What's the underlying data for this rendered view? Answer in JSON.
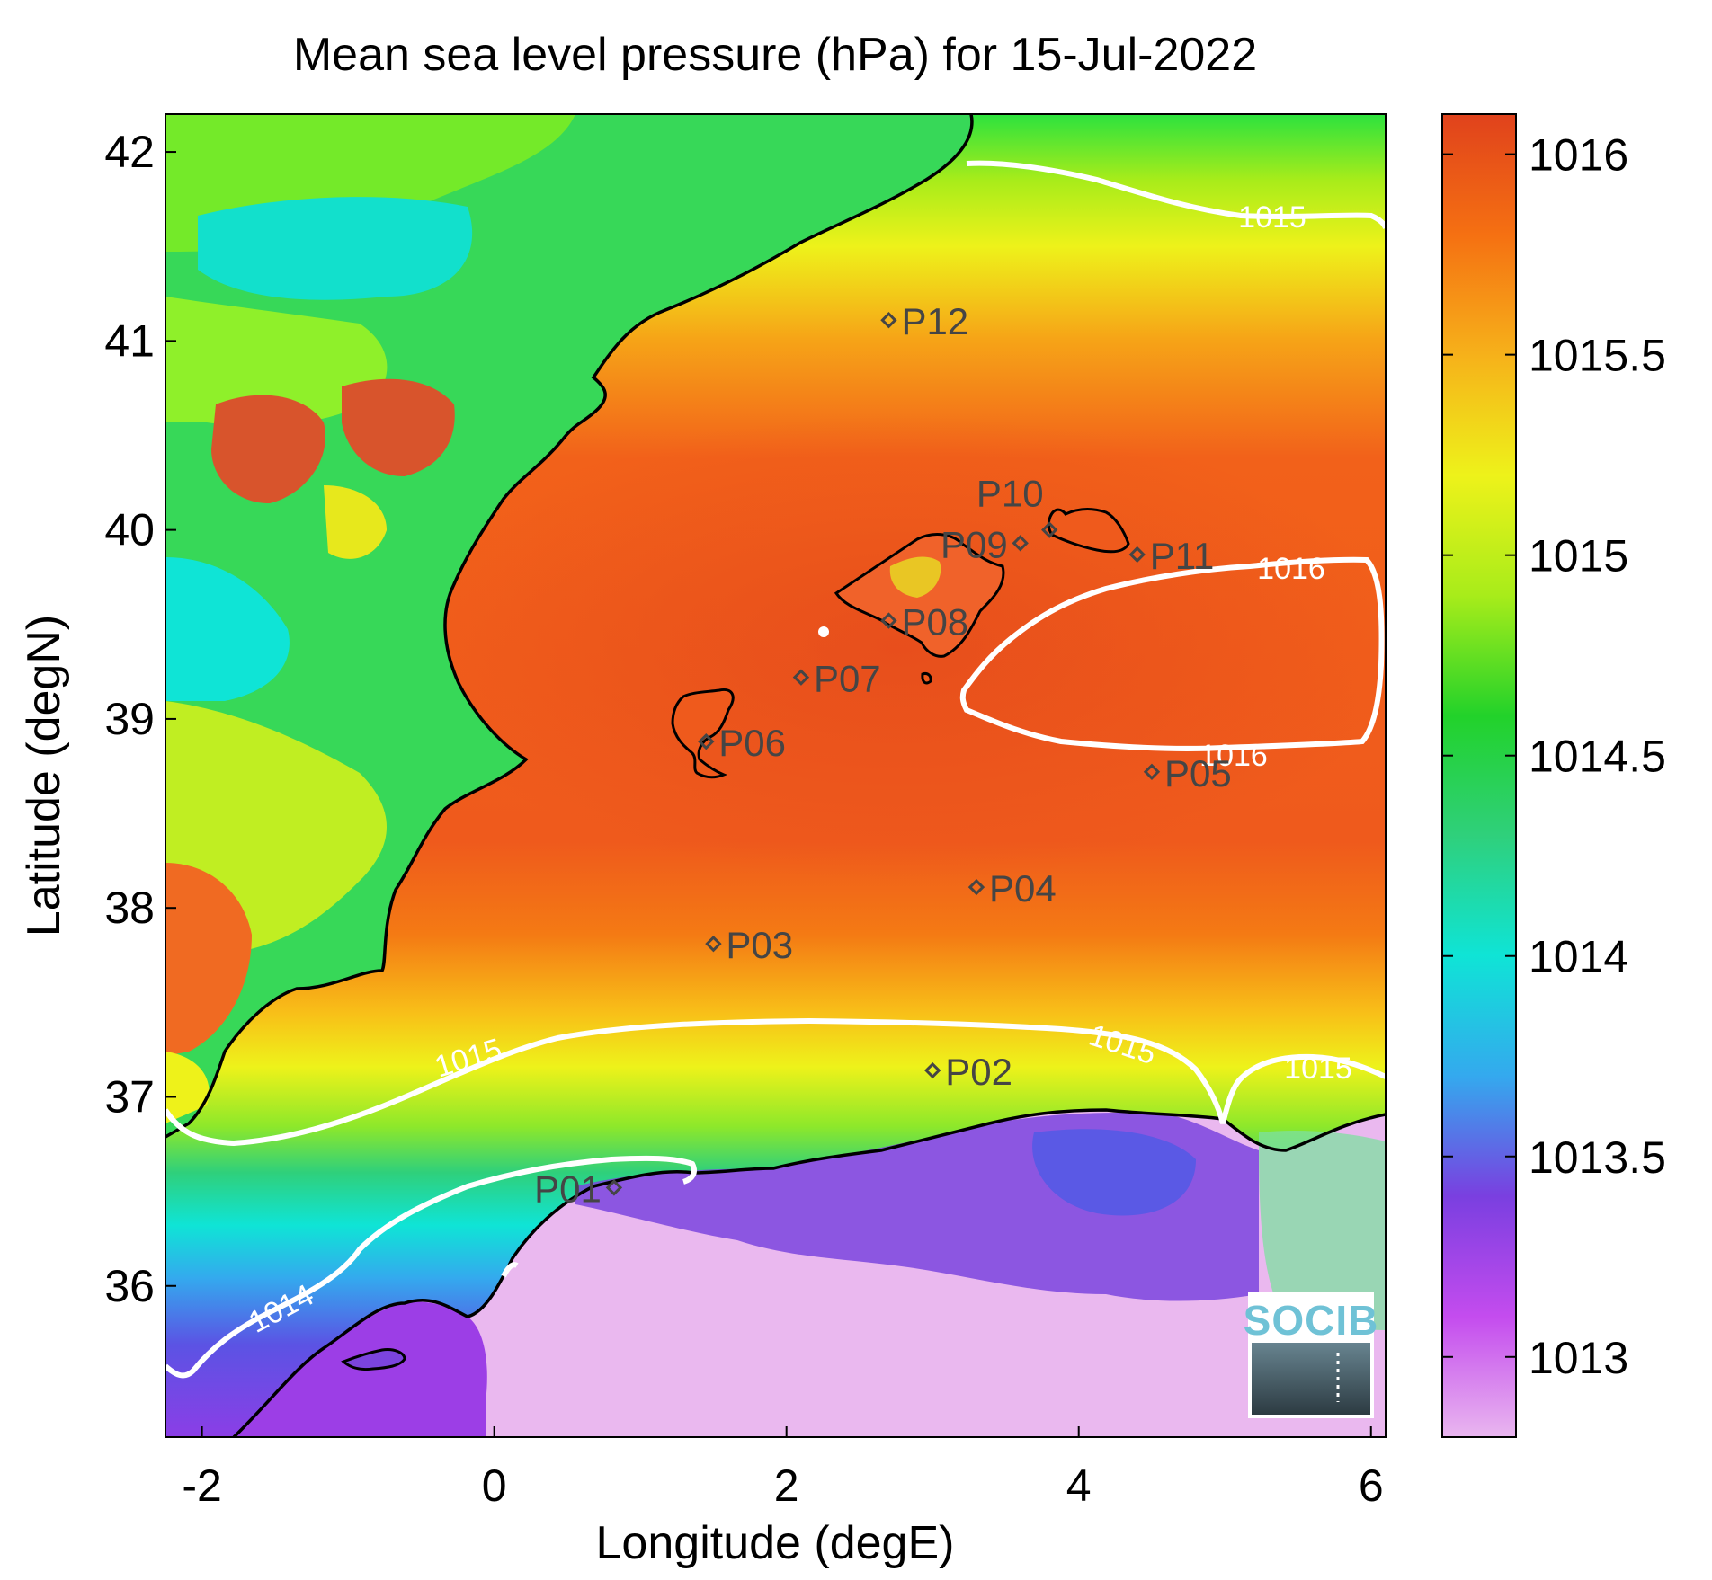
{
  "title": "Mean sea level pressure (hPa) for 15-Jul-2022",
  "xlabel": "Longitude (degE)",
  "ylabel": "Latitude (degN)",
  "map": {
    "lon_range": [
      -2.25,
      6.1
    ],
    "lat_range": [
      35.2,
      42.2
    ],
    "lon_ticks": [
      "-2",
      "0",
      "2",
      "4",
      "6"
    ],
    "lat_ticks": [
      "36",
      "37",
      "38",
      "39",
      "40",
      "41",
      "42"
    ]
  },
  "colorbar": {
    "range": [
      1012.8,
      1016.1
    ],
    "ticks": [
      "1013",
      "1013.5",
      "1014",
      "1014.5",
      "1015",
      "1015.5",
      "1016"
    ],
    "colors": [
      "#e9b6ef",
      "#c44cee",
      "#7a3fe0",
      "#34a9ee",
      "#0fe4d6",
      "#2fd07b",
      "#22d22a",
      "#a8ec1a",
      "#eef21a",
      "#f6b11a",
      "#f57012",
      "#e0421c"
    ]
  },
  "contours": {
    "levels": [
      "1014",
      "1015",
      "1016"
    ],
    "labels": [
      "1015",
      "1015",
      "1015",
      "1015",
      "1016",
      "1016",
      "1014"
    ],
    "color": "#ffffff"
  },
  "stations": [
    {
      "id": "P01",
      "lon": 0.82,
      "lat": 36.52
    },
    {
      "id": "P02",
      "lon": 3.0,
      "lat": 37.14
    },
    {
      "id": "P03",
      "lon": 1.5,
      "lat": 37.81
    },
    {
      "id": "P04",
      "lon": 3.3,
      "lat": 38.11
    },
    {
      "id": "P05",
      "lon": 4.5,
      "lat": 38.72
    },
    {
      "id": "P06",
      "lon": 1.45,
      "lat": 38.88
    },
    {
      "id": "P07",
      "lon": 2.1,
      "lat": 39.22
    },
    {
      "id": "P08",
      "lon": 2.7,
      "lat": 39.52
    },
    {
      "id": "P09",
      "lon": 3.6,
      "lat": 39.93
    },
    {
      "id": "P10",
      "lon": 3.8,
      "lat": 40.0
    },
    {
      "id": "P11",
      "lon": 4.4,
      "lat": 39.87
    },
    {
      "id": "P12",
      "lon": 2.7,
      "lat": 41.11
    }
  ],
  "logo": {
    "text": "SOCIB"
  }
}
